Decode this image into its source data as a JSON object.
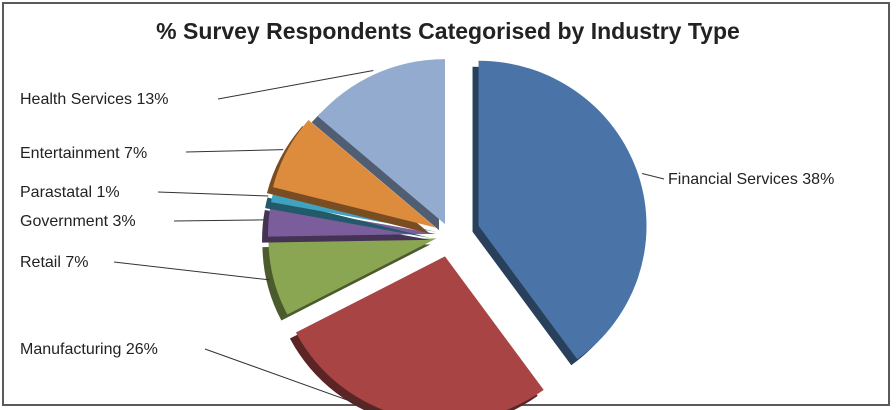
{
  "chart_data": {
    "type": "pie",
    "title": "% Survey Respondents Categorised by Industry Type",
    "slices": [
      {
        "label": "Financial Services 38%",
        "category": "Financial Services",
        "value": 38,
        "color": "#4A74A8"
      },
      {
        "label": "Manufacturing 26%",
        "category": "Manufacturing",
        "value": 26,
        "color": "#A84443"
      },
      {
        "label": "Retail 7%",
        "category": "Retail",
        "value": 7,
        "color": "#8BA653"
      },
      {
        "label": "Government 3%",
        "category": "Government",
        "value": 3,
        "color": "#7B5D9B"
      },
      {
        "label": "Parastatal 1%",
        "category": "Parastatal",
        "value": 1,
        "color": "#3FA3BF"
      },
      {
        "label": "Entertainment 7%",
        "category": "Entertainment",
        "value": 7,
        "color": "#DD8B3D"
      },
      {
        "label": "Health Services 13%",
        "category": "Health Services",
        "value": 13,
        "color": "#94ABD0"
      }
    ],
    "legend": "none",
    "data_labels": "outside-with-leader-lines"
  }
}
